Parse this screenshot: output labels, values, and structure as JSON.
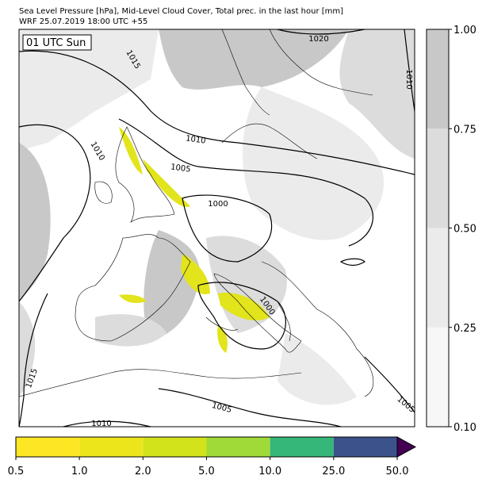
{
  "header": {
    "title": "Sea Level Pressure [hPa], Mid-Level Cloud Cover, Total prec. in the last hour [mm]",
    "subtitle": "WRF 25.07.2019 18:00 UTC +55"
  },
  "map": {
    "time_label": "01 UTC Sun",
    "isobar_labels": [
      "1020",
      "1015",
      "1010",
      "1010",
      "1010",
      "1005",
      "1000",
      "1000",
      "1015",
      "1005",
      "1010",
      "1005"
    ]
  },
  "cloud_colorbar": {
    "ticks": [
      "0.10",
      "0.25",
      "0.50",
      "0.75",
      "1.00"
    ],
    "colors": [
      "#f7f7f7",
      "#ebebeb",
      "#dcdcdc",
      "#c8c8c8"
    ]
  },
  "precip_colorbar": {
    "ticks": [
      "0.5",
      "1.0",
      "2.0",
      "5.0",
      "10.0",
      "25.0",
      "50.0"
    ],
    "colors": [
      "#fde725",
      "#ede51b",
      "#d2e21b",
      "#a0da39",
      "#35b779",
      "#3b528b"
    ],
    "extend_color": "#440154"
  }
}
